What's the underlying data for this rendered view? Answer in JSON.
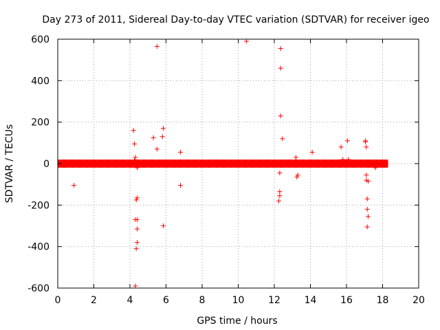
{
  "chart_data": {
    "type": "scatter",
    "title": "Day 273 of 2011, Sidereal Day-to-day VTEC variation (SDTVAR) for receiver igeo",
    "xlabel": "GPS time / hours",
    "ylabel": "SDTVAR / TECUs",
    "xlim": [
      0,
      20
    ],
    "ylim": [
      -600,
      600
    ],
    "xticks": [
      0,
      2,
      4,
      6,
      8,
      10,
      12,
      14,
      16,
      18,
      20
    ],
    "yticks": [
      -600,
      -400,
      -200,
      0,
      200,
      400,
      600
    ],
    "xtick_labels": [
      "0",
      "2",
      "4",
      "6",
      "8",
      "10",
      "12",
      "14",
      "16",
      "18",
      "20"
    ],
    "ytick_labels": [
      "-600",
      "-400",
      "-200",
      "0",
      "200",
      "400",
      "600"
    ],
    "grid": true,
    "marker": "+",
    "color": "#ff0000",
    "series": [
      {
        "name": "SDTVAR",
        "dense_band": {
          "x_range": [
            0,
            18.3
          ],
          "y_center": 0,
          "y_halfwidth": 6
        },
        "x": [
          0.9,
          4.2,
          4.25,
          4.3,
          4.3,
          4.3,
          4.35,
          4.35,
          4.4,
          4.4,
          4.4,
          4.4,
          4.4,
          4.25,
          5.3,
          5.5,
          5.5,
          5.8,
          5.85,
          5.85,
          6.8,
          6.8,
          10.45,
          12.25,
          12.3,
          12.3,
          12.3,
          12.35,
          12.35,
          12.35,
          12.35,
          12.45,
          13.2,
          13.2,
          13.25,
          13.3,
          14.1,
          15.7,
          15.8,
          16.05,
          16.1,
          17.05,
          17.05,
          17.1,
          17.1,
          17.1,
          17.15,
          17.15,
          17.15,
          17.2,
          17.2,
          17.6
        ],
        "y": [
          -105,
          160,
          95,
          30,
          -270,
          -590,
          -410,
          -175,
          -165,
          -270,
          -315,
          -380,
          -20,
          15,
          125,
          70,
          565,
          130,
          170,
          -300,
          55,
          -105,
          590,
          -180,
          -45,
          -135,
          -155,
          555,
          460,
          230,
          -5,
          120,
          30,
          15,
          -65,
          -55,
          55,
          80,
          20,
          110,
          20,
          110,
          105,
          80,
          -55,
          -80,
          -170,
          -220,
          -305,
          -85,
          -255,
          -20
        ]
      }
    ]
  }
}
